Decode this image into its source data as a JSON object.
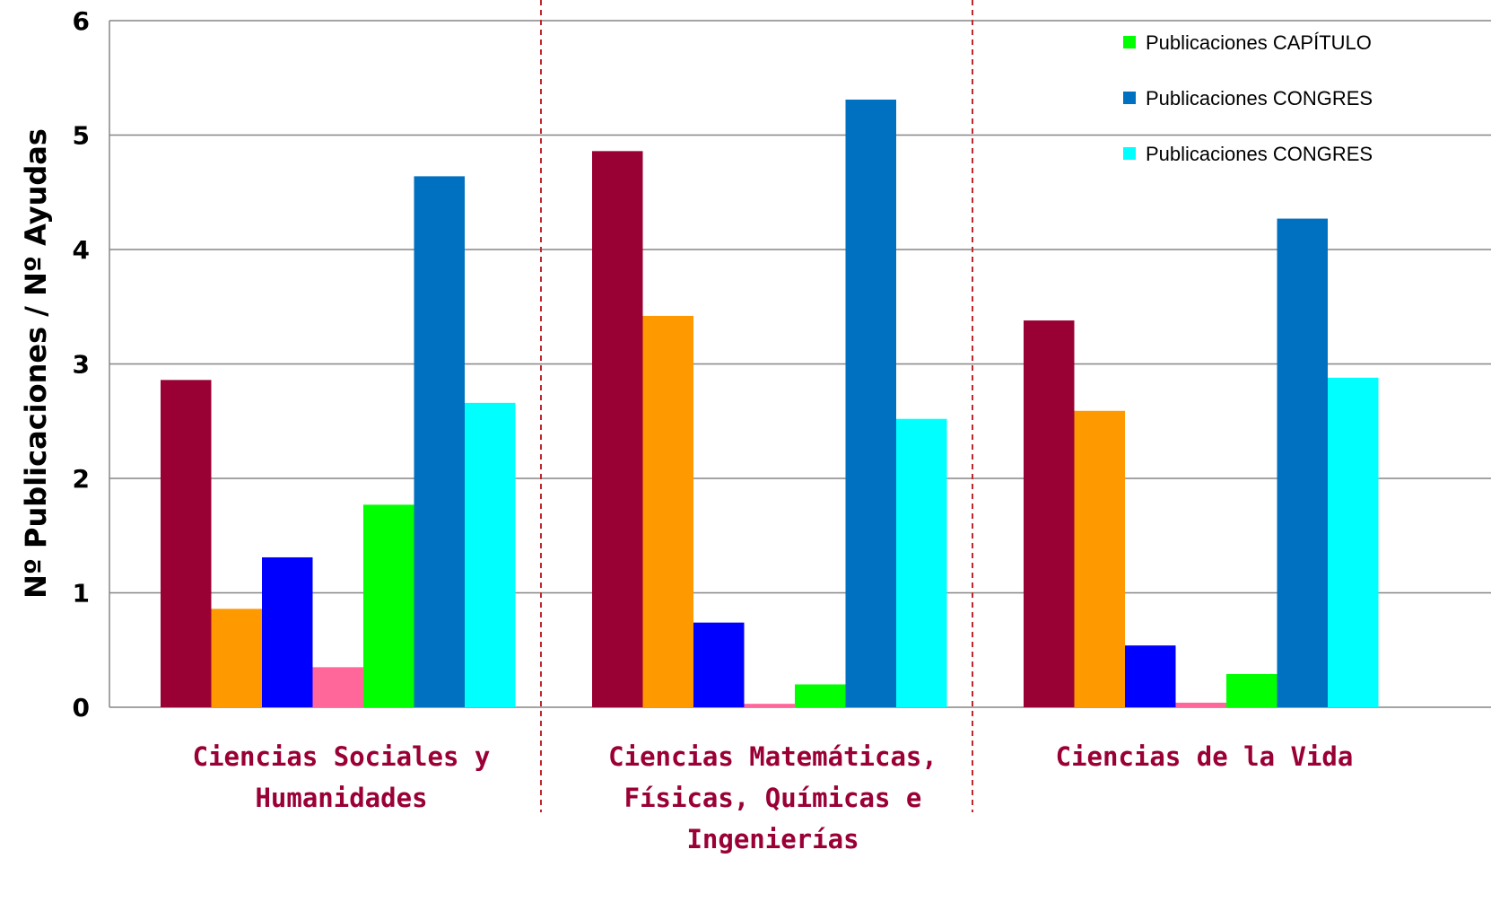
{
  "chart_data": {
    "type": "bar",
    "ylabel": "Nº Publicaciones / Nº Ayudas",
    "xlabel": "",
    "ylim": [
      0,
      6
    ],
    "yticks": [
      "0",
      "1",
      "2",
      "3",
      "4",
      "5",
      "6"
    ],
    "grid": true,
    "legend_position": "top-right",
    "categories": [
      [
        "Ciencias Sociales y",
        "Humanidades"
      ],
      [
        "Ciencias Matemáticas,",
        "Físicas, Químicas e",
        "Ingenierías"
      ],
      [
        "Ciencias de la Vida"
      ]
    ],
    "series": [
      {
        "color": "#990033",
        "values": [
          2.86,
          4.86,
          3.38
        ]
      },
      {
        "color": "#ff9900",
        "values": [
          0.86,
          3.42,
          2.59
        ]
      },
      {
        "color": "#0000ff",
        "values": [
          1.31,
          0.74,
          0.54
        ]
      },
      {
        "color": "#ff6699",
        "values": [
          0.35,
          0.03,
          0.04
        ]
      },
      {
        "color": "#00ff00",
        "values": [
          1.77,
          0.2,
          0.29
        ]
      },
      {
        "color": "#0070c0",
        "values": [
          4.64,
          5.31,
          4.27
        ]
      },
      {
        "color": "#00ffff",
        "values": [
          2.66,
          2.52,
          2.88
        ]
      }
    ],
    "legend": [
      {
        "label": "Publicaciones CAPÍTULO",
        "color": "#00ff00"
      },
      {
        "label": "Publicaciones CONGRES",
        "color": "#0070c0"
      },
      {
        "label": "Publicaciones CONGRES",
        "color": "#00ffff"
      }
    ]
  }
}
